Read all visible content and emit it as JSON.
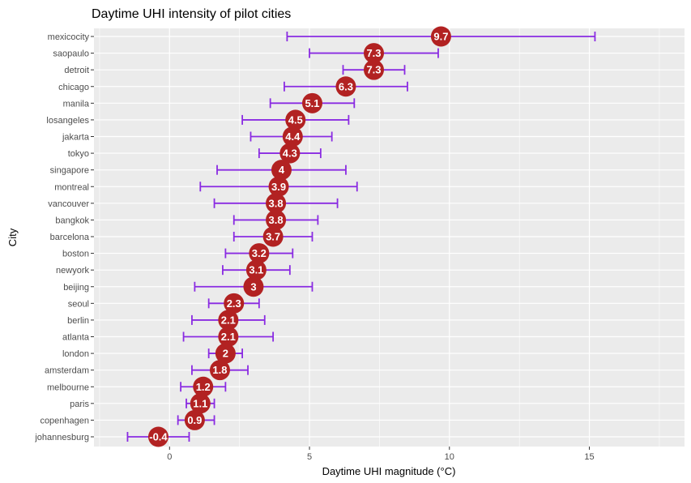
{
  "chart_data": {
    "type": "errorbar-dot",
    "title": "Daytime UHI intensity of pilot cities",
    "xlabel": "Daytime UHI magnitude (°C)",
    "ylabel": "City",
    "xlim": [
      -2.7,
      18.4
    ],
    "xticks": [
      0,
      5,
      10,
      15
    ],
    "grid": true,
    "colors": {
      "panel": "#ebebeb",
      "grid": "#ffffff",
      "point": "#b22222",
      "errorbar": "#8a2be2"
    },
    "cities": [
      {
        "city": "mexicocity",
        "value": 9.7,
        "label": "9.7",
        "low": 4.2,
        "high": 15.2
      },
      {
        "city": "saopaulo",
        "value": 7.3,
        "label": "7.3",
        "low": 5.0,
        "high": 9.6
      },
      {
        "city": "detroit",
        "value": 7.3,
        "label": "7.3",
        "low": 6.2,
        "high": 8.4
      },
      {
        "city": "chicago",
        "value": 6.3,
        "label": "6.3",
        "low": 4.1,
        "high": 8.5
      },
      {
        "city": "manila",
        "value": 5.1,
        "label": "5.1",
        "low": 3.6,
        "high": 6.6
      },
      {
        "city": "losangeles",
        "value": 4.5,
        "label": "4.5",
        "low": 2.6,
        "high": 6.4
      },
      {
        "city": "jakarta",
        "value": 4.4,
        "label": "4.4",
        "low": 2.9,
        "high": 5.8
      },
      {
        "city": "tokyo",
        "value": 4.3,
        "label": "4.3",
        "low": 3.2,
        "high": 5.4
      },
      {
        "city": "singapore",
        "value": 4.0,
        "label": "4",
        "low": 1.7,
        "high": 6.3
      },
      {
        "city": "montreal",
        "value": 3.9,
        "label": "3.9",
        "low": 1.1,
        "high": 6.7
      },
      {
        "city": "vancouver",
        "value": 3.8,
        "label": "3.8",
        "low": 1.6,
        "high": 6.0
      },
      {
        "city": "bangkok",
        "value": 3.8,
        "label": "3.8",
        "low": 2.3,
        "high": 5.3
      },
      {
        "city": "barcelona",
        "value": 3.7,
        "label": "3.7",
        "low": 2.3,
        "high": 5.1
      },
      {
        "city": "boston",
        "value": 3.2,
        "label": "3.2",
        "low": 2.0,
        "high": 4.4
      },
      {
        "city": "newyork",
        "value": 3.1,
        "label": "3.1",
        "low": 1.9,
        "high": 4.3
      },
      {
        "city": "beijing",
        "value": 3.0,
        "label": "3",
        "low": 0.9,
        "high": 5.1
      },
      {
        "city": "seoul",
        "value": 2.3,
        "label": "2.3",
        "low": 1.4,
        "high": 3.2
      },
      {
        "city": "berlin",
        "value": 2.1,
        "label": "2.1",
        "low": 0.8,
        "high": 3.4
      },
      {
        "city": "atlanta",
        "value": 2.1,
        "label": "2.1",
        "low": 0.5,
        "high": 3.7
      },
      {
        "city": "london",
        "value": 2.0,
        "label": "2",
        "low": 1.4,
        "high": 2.6
      },
      {
        "city": "amsterdam",
        "value": 1.8,
        "label": "1.8",
        "low": 0.8,
        "high": 2.8
      },
      {
        "city": "melbourne",
        "value": 1.2,
        "label": "1.2",
        "low": 0.4,
        "high": 2.0
      },
      {
        "city": "paris",
        "value": 1.1,
        "label": "1.1",
        "low": 0.6,
        "high": 1.6
      },
      {
        "city": "copenhagen",
        "value": 0.9,
        "label": "0.9",
        "low": 0.3,
        "high": 1.6
      },
      {
        "city": "johannesburg",
        "value": -0.4,
        "label": "-0.4",
        "low": -1.5,
        "high": 0.7
      }
    ]
  }
}
